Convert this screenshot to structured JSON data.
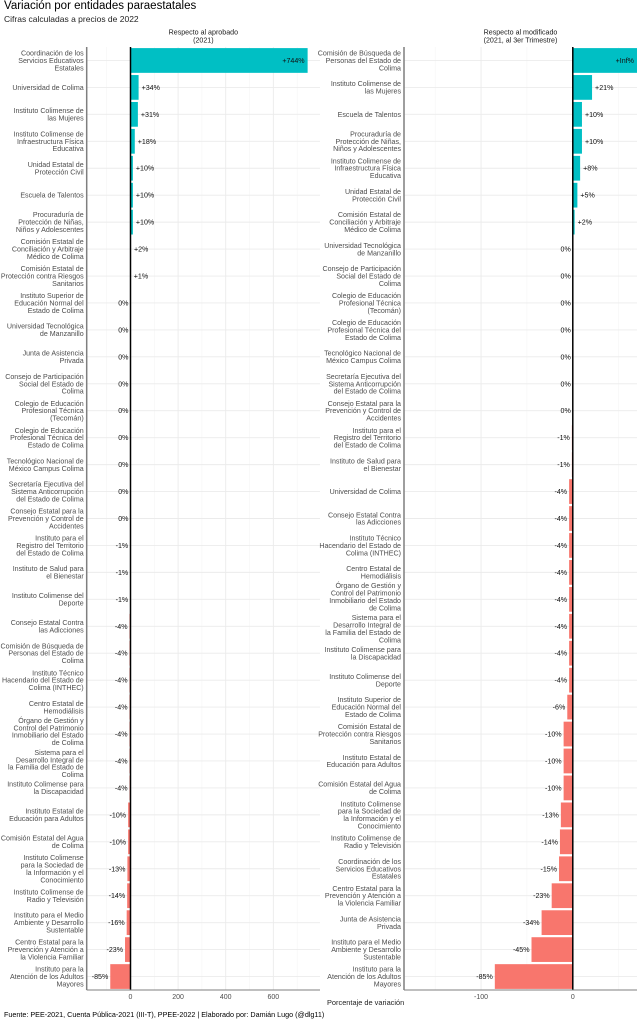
{
  "title": "Variación por entidades paraestatales",
  "subtitle": "Cifras calculadas a precios de 2022",
  "caption": "Fuente: PEE-2021, Cuenta Pública-2021 (III-T), PPEE-2022 | Elaborado por: Damián Lugo (@dlg11)",
  "chart_data": [
    {
      "type": "bar",
      "orientation": "horizontal",
      "panel_title": "Respecto al aprobado\n(2021)",
      "xlabel": "",
      "x_ticks": [
        0,
        200,
        400,
        600
      ],
      "xlim": [
        -184,
        796
      ],
      "grid": true,
      "colors": {
        "positive": "#00BFC4",
        "negative": "#F8766D"
      },
      "bars": [
        {
          "category": "Coordinación de los\nServicios Educativos\nEstatales",
          "value": 744,
          "label": "+744%"
        },
        {
          "category": "Universidad de Colima",
          "value": 34,
          "label": "+34%"
        },
        {
          "category": "Instituto Colimense de\nlas Mujeres",
          "value": 31,
          "label": "+31%"
        },
        {
          "category": "Instituto Colimense de\nInfraestructura Física\nEducativa",
          "value": 18,
          "label": "+18%"
        },
        {
          "category": "Unidad Estatal de\nProtección Civil",
          "value": 10,
          "label": "+10%"
        },
        {
          "category": "Escuela de Talentos",
          "value": 10,
          "label": "+10%"
        },
        {
          "category": "Procuraduría de\nProtección de Niñas,\nNiños y Adolescentes",
          "value": 10,
          "label": "+10%"
        },
        {
          "category": "Comisión Estatal de\nConciliación y Arbitraje\nMédico de Colima",
          "value": 2,
          "label": "+2%"
        },
        {
          "category": "Comisión Estatal de\nProtección contra Riesgos\nSanitarios",
          "value": 1,
          "label": "+1%"
        },
        {
          "category": "Instituto Superior de\nEducación Normal del\nEstado de Colima",
          "value": 0,
          "label": "0%"
        },
        {
          "category": "Universidad Tecnológica\nde Manzanillo",
          "value": 0,
          "label": "0%"
        },
        {
          "category": "Junta de Asistencia\nPrivada",
          "value": 0,
          "label": "0%"
        },
        {
          "category": "Consejo de Participación\nSocial del Estado de\nColima",
          "value": 0,
          "label": "0%"
        },
        {
          "category": "Colegio de Educación\nProfesional Técnica\n(Tecomán)",
          "value": 0,
          "label": "0%"
        },
        {
          "category": "Colegio de Educación\nProfesional Técnica del\nEstado de Colima",
          "value": 0,
          "label": "0%"
        },
        {
          "category": "Tecnológico Nacional de\nMéxico Campus Colima",
          "value": 0,
          "label": "0%"
        },
        {
          "category": "Secretaría Ejecutiva del\nSistema Anticorrupción\ndel Estado de Colima",
          "value": 0,
          "label": "0%"
        },
        {
          "category": "Consejo Estatal para la\nPrevención y Control de\nAccidentes",
          "value": 0,
          "label": "0%"
        },
        {
          "category": "Instituto para el\nRegistro del Territorio\ndel Estado de Colima",
          "value": -1,
          "label": "-1%"
        },
        {
          "category": "Instituto de Salud para\nel Bienestar",
          "value": -1,
          "label": "-1%"
        },
        {
          "category": "Instituto Colimense del\nDeporte",
          "value": -1,
          "label": "-1%"
        },
        {
          "category": "Consejo Estatal Contra\nlas Adicciones",
          "value": -4,
          "label": "-4%"
        },
        {
          "category": "Comisión de Búsqueda de\nPersonas del Estado de\nColima",
          "value": -4,
          "label": "-4%"
        },
        {
          "category": "Instituto Técnico\nHacendario del Estado de\nColima (INTHEC)",
          "value": -4,
          "label": "-4%"
        },
        {
          "category": "Centro Estatal de\nHemodiálisis",
          "value": -4,
          "label": "-4%"
        },
        {
          "category": "Órgano de Gestión y\nControl del Patrimonio\nInmobiliario del Estado\nde Colima",
          "value": -4,
          "label": "-4%"
        },
        {
          "category": "Sistema para el\nDesarrollo Integral de\nla Familia del Estado de\nColima",
          "value": -4,
          "label": "-4%"
        },
        {
          "category": "Instituto Colimense para\nla Discapacidad",
          "value": -4,
          "label": "-4%"
        },
        {
          "category": "Instituto Estatal de\nEducación para Adultos",
          "value": -10,
          "label": "-10%"
        },
        {
          "category": "Comisión Estatal del Agua\nde Colima",
          "value": -10,
          "label": "-10%"
        },
        {
          "category": "Instituto Colimense\npara la Sociedad de\nla Información y el\nConocimiento",
          "value": -13,
          "label": "-13%"
        },
        {
          "category": "Instituto Colimense de\nRadio y Televisión",
          "value": -14,
          "label": "-14%"
        },
        {
          "category": "Instituto para el Medio\nAmbiente y Desarrollo\nSustentable",
          "value": -16,
          "label": "-16%"
        },
        {
          "category": "Centro Estatal para la\nPrevención y Atención a\nla Violencia Familiar",
          "value": -23,
          "label": "-23%"
        },
        {
          "category": "Instituto para la\nAtención de los Adultos\nMayores",
          "value": -85,
          "label": "-85%"
        }
      ]
    },
    {
      "type": "bar",
      "orientation": "horizontal",
      "panel_title": "Respecto al modificado\n(2021, al 3er Trimestre)",
      "xlabel": "Porcentaje de variación",
      "x_ticks": [
        -100,
        0
      ],
      "xlim": [
        -184,
        70
      ],
      "grid": true,
      "colors": {
        "positive": "#00BFC4",
        "negative": "#F8766D"
      },
      "bars": [
        {
          "category": "Comisión de Búsqueda de\nPersonas del Estado de\nColima",
          "value": "Inf",
          "label": "+Inf%"
        },
        {
          "category": "Instituto Colimense de\nlas Mujeres",
          "value": 21,
          "label": "+21%"
        },
        {
          "category": "Escuela de Talentos",
          "value": 10,
          "label": "+10%"
        },
        {
          "category": "Procuraduría de\nProtección de Niñas,\nNiños y Adolescentes",
          "value": 10,
          "label": "+10%"
        },
        {
          "category": "Instituto Colimense de\nInfraestructura Física\nEducativa",
          "value": 8,
          "label": "+8%"
        },
        {
          "category": "Unidad Estatal de\nProtección Civil",
          "value": 5,
          "label": "+5%"
        },
        {
          "category": "Comisión Estatal de\nConciliación y Arbitraje\nMédico de Colima",
          "value": 2,
          "label": "+2%"
        },
        {
          "category": "Universidad Tecnológica\nde Manzanillo",
          "value": 0,
          "label": "0%"
        },
        {
          "category": "Consejo de Participación\nSocial del Estado de\nColima",
          "value": 0,
          "label": "0%"
        },
        {
          "category": "Colegio de Educación\nProfesional Técnica\n(Tecomán)",
          "value": 0,
          "label": "0%"
        },
        {
          "category": "Colegio de Educación\nProfesional Técnica del\nEstado de Colima",
          "value": 0,
          "label": "0%"
        },
        {
          "category": "Tecnológico Nacional de\nMéxico Campus Colima",
          "value": 0,
          "label": "0%"
        },
        {
          "category": "Secretaría Ejecutiva del\nSistema Anticorrupción\ndel Estado de Colima",
          "value": 0,
          "label": "0%"
        },
        {
          "category": "Consejo Estatal para la\nPrevención y Control de\nAccidentes",
          "value": 0,
          "label": "0%"
        },
        {
          "category": "Instituto para el\nRegistro del Territorio\ndel Estado de Colima",
          "value": -1,
          "label": "-1%"
        },
        {
          "category": "Instituto de Salud para\nel Bienestar",
          "value": -1,
          "label": "-1%"
        },
        {
          "category": "Universidad de Colima",
          "value": -4,
          "label": "-4%"
        },
        {
          "category": "Consejo Estatal Contra\nlas Adicciones",
          "value": -4,
          "label": "-4%"
        },
        {
          "category": "Instituto Técnico\nHacendario del Estado de\nColima (INTHEC)",
          "value": -4,
          "label": "-4%"
        },
        {
          "category": "Centro Estatal de\nHemodiálisis",
          "value": -4,
          "label": "-4%"
        },
        {
          "category": "Órgano de Gestión y\nControl del Patrimonio\nInmobiliario del Estado\nde Colima",
          "value": -4,
          "label": "-4%"
        },
        {
          "category": "Sistema para el\nDesarrollo Integral de\nla Familia del Estado de\nColima",
          "value": -4,
          "label": "-4%"
        },
        {
          "category": "Instituto Colimense para\nla Discapacidad",
          "value": -4,
          "label": "-4%"
        },
        {
          "category": "Instituto Colimense del\nDeporte",
          "value": -4,
          "label": "-4%"
        },
        {
          "category": "Instituto Superior de\nEducación Normal del\nEstado de Colima",
          "value": -6,
          "label": "-6%"
        },
        {
          "category": "Comisión Estatal de\nProtección contra Riesgos\nSanitarios",
          "value": -10,
          "label": "-10%"
        },
        {
          "category": "Instituto Estatal de\nEducación para Adultos",
          "value": -10,
          "label": "-10%"
        },
        {
          "category": "Comisión Estatal del Agua\nde Colima",
          "value": -10,
          "label": "-10%"
        },
        {
          "category": "Instituto Colimense\npara la Sociedad de\nla Información y el\nConocimiento",
          "value": -13,
          "label": "-13%"
        },
        {
          "category": "Instituto Colimense de\nRadio y Televisión",
          "value": -14,
          "label": "-14%"
        },
        {
          "category": "Coordinación de los\nServicios Educativos\nEstatales",
          "value": -15,
          "label": "-15%"
        },
        {
          "category": "Centro Estatal para la\nPrevención y Atención a\nla Violencia Familiar",
          "value": -23,
          "label": "-23%"
        },
        {
          "category": "Junta de Asistencia\nPrivada",
          "value": -34,
          "label": "-34%"
        },
        {
          "category": "Instituto para el Medio\nAmbiente y Desarrollo\nSustentable",
          "value": -45,
          "label": "-45%"
        },
        {
          "category": "Instituto para la\nAtención de los Adultos\nMayores",
          "value": -85,
          "label": "-85%"
        }
      ]
    }
  ]
}
